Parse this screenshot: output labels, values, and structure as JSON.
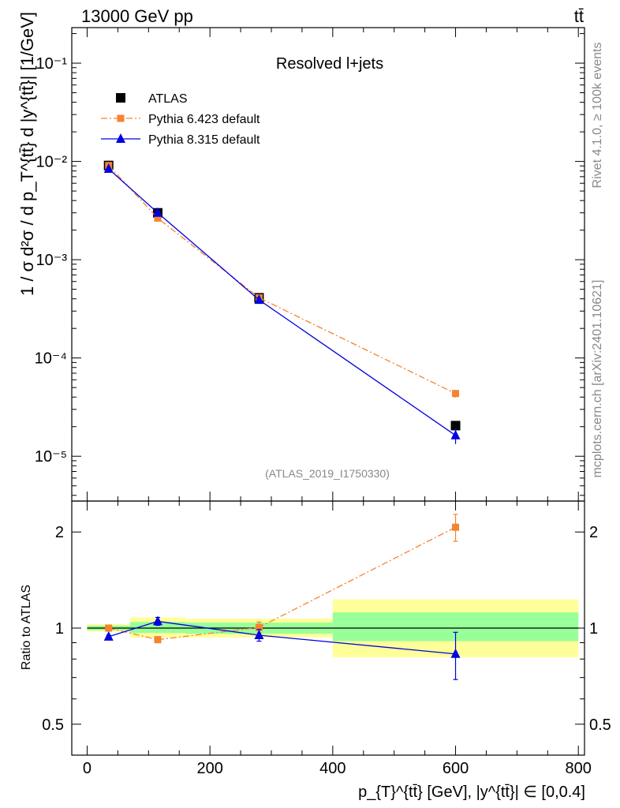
{
  "header": {
    "left": "13000 GeV pp",
    "right": "tt̄"
  },
  "side_labels": {
    "rivet": "Rivet 4.1.0, ≥ 100k events",
    "mcplots": "mcplots.cern.ch [arXiv:2401.10621]"
  },
  "chart_data": [
    {
      "type": "line",
      "panel": "main",
      "title": "Resolved l+jets",
      "watermark": "(ATLAS_2019_I1750330)",
      "ylabel": "1 / σ d²σ / d p_T^{tt̄} d |y^{tt̄}| [1/GeV]",
      "yscale": "log",
      "xlim": [
        -25,
        810
      ],
      "ylim": [
        3.5e-06,
        0.23
      ],
      "yticks": [
        {
          "value": 0.1,
          "label": "10⁻¹"
        },
        {
          "value": 0.01,
          "label": "10⁻²"
        },
        {
          "value": 0.001,
          "label": "10⁻³"
        },
        {
          "value": 0.0001,
          "label": "10⁻⁴"
        },
        {
          "value": 1e-05,
          "label": "10⁻⁵"
        }
      ],
      "legend": {
        "placement": "top-left",
        "entries": [
          "ATLAS",
          "Pythia 6.423 default",
          "Pythia 8.315 default"
        ]
      },
      "series": [
        {
          "name": "ATLAS",
          "style": "data",
          "color": "#000000",
          "x": [
            35,
            115,
            280,
            600
          ],
          "y": [
            0.0091,
            0.003,
            0.00041,
            2.05e-05
          ],
          "err": [
            0,
            0,
            0,
            0
          ]
        },
        {
          "name": "Pythia 6.423 default",
          "style": "dashdot",
          "color": "#f58330",
          "x": [
            35,
            115,
            280,
            600
          ],
          "y": [
            0.0091,
            0.00265,
            0.00041,
            4.35e-05
          ],
          "err": [
            0.0003,
            0.0001,
            1.5e-05,
            4e-06
          ]
        },
        {
          "name": "Pythia 8.315 default",
          "style": "solid",
          "color": "#0000e0",
          "x": [
            35,
            115,
            280,
            600
          ],
          "y": [
            0.0084,
            0.003,
            0.00039,
            1.63e-05
          ],
          "err": [
            0.0003,
            0.0001,
            1.5e-05,
            3e-06
          ]
        }
      ]
    },
    {
      "type": "line",
      "panel": "ratio",
      "ylabel": "Ratio to ATLAS",
      "xlabel": "p_{T}^{tt̄} [GeV], |y^{tt̄}| ∈ [0,0.4]",
      "yscale": "log",
      "xlim": [
        -25,
        810
      ],
      "ylim": [
        0.4,
        2.5
      ],
      "xticks": [
        {
          "value": 0,
          "label": "0"
        },
        {
          "value": 200,
          "label": "200"
        },
        {
          "value": 400,
          "label": "400"
        },
        {
          "value": 600,
          "label": "600"
        },
        {
          "value": 800,
          "label": "800"
        }
      ],
      "yticks": [
        {
          "value": 2,
          "label": "2"
        },
        {
          "value": 1,
          "label": "1"
        },
        {
          "value": 0.5,
          "label": "0.5"
        }
      ],
      "bands": [
        {
          "x0": 0,
          "x1": 70,
          "yellow": [
            0.975,
            1.03
          ],
          "green": [
            0.985,
            1.018
          ]
        },
        {
          "x0": 70,
          "x1": 160,
          "yellow": [
            0.935,
            1.08
          ],
          "green": [
            0.965,
            1.045
          ]
        },
        {
          "x0": 160,
          "x1": 400,
          "yellow": [
            0.935,
            1.07
          ],
          "green": [
            0.96,
            1.04
          ]
        },
        {
          "x0": 400,
          "x1": 800,
          "yellow": [
            0.81,
            1.23
          ],
          "green": [
            0.91,
            1.12
          ]
        }
      ],
      "series": [
        {
          "name": "Pythia 6.423 default",
          "style": "dashdot",
          "color": "#f58330",
          "x": [
            35,
            115,
            280,
            600
          ],
          "y": [
            1.0,
            0.92,
            1.005,
            2.07
          ],
          "err": [
            0.01,
            0.02,
            0.04,
            0.2
          ]
        },
        {
          "name": "Pythia 8.315 default",
          "style": "solid",
          "color": "#0000e0",
          "x": [
            35,
            115,
            280,
            600
          ],
          "y": [
            0.94,
            1.05,
            0.95,
            0.83
          ],
          "err": [
            0.01,
            0.03,
            0.04,
            0.14
          ]
        }
      ]
    }
  ]
}
